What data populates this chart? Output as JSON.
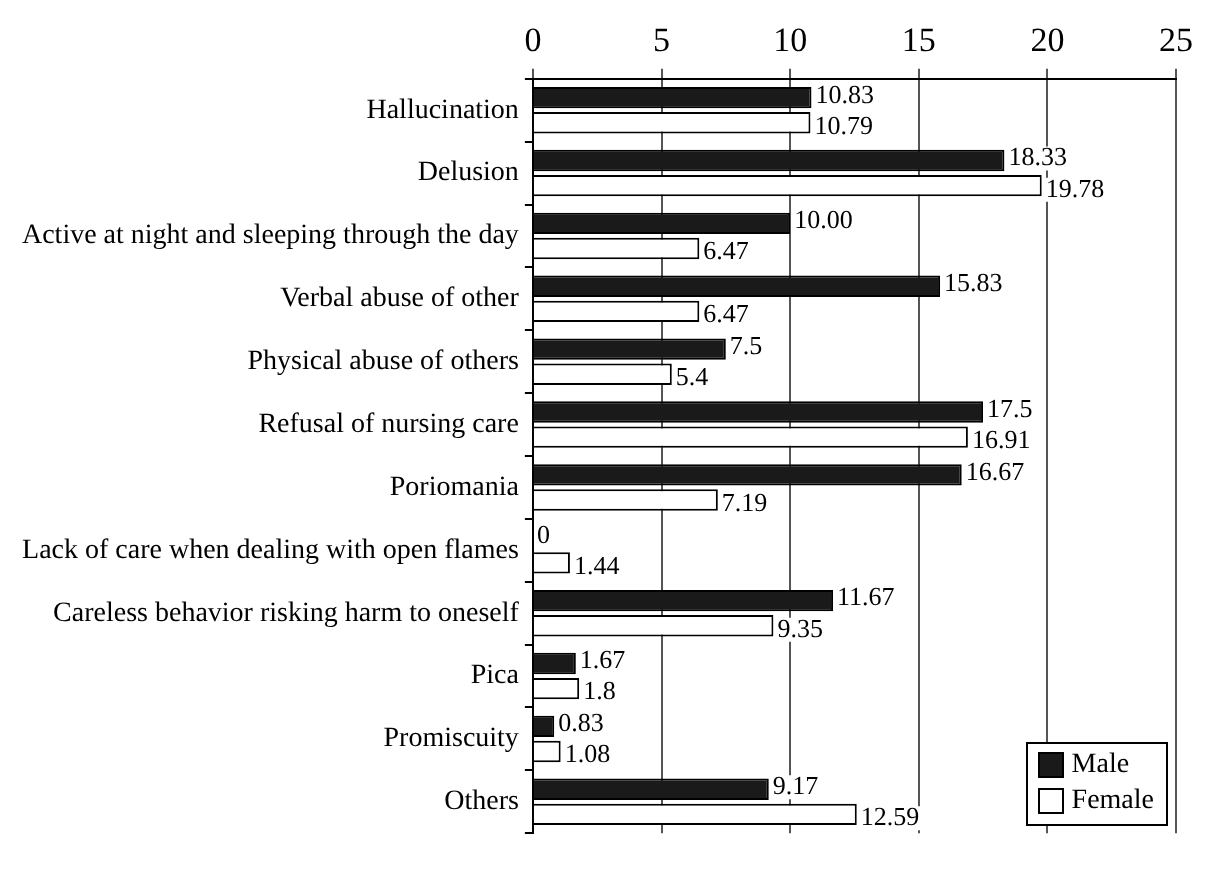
{
  "chart_data": {
    "type": "bar",
    "orientation": "horizontal",
    "categories": [
      "Hallucination",
      "Delusion",
      "Active at night and sleeping through the day",
      "Verbal abuse of other",
      "Physical abuse of others",
      "Refusal of nursing care",
      "Poriomania",
      "Lack of care when dealing with open flames",
      "Careless behavior risking harm to oneself",
      "Pica",
      "Promiscuity",
      "Others"
    ],
    "series": [
      {
        "name": "Male",
        "color": "#1a1a1a",
        "values": [
          10.83,
          18.33,
          10.0,
          15.83,
          7.5,
          17.5,
          16.67,
          0,
          11.67,
          1.67,
          0.83,
          9.17
        ],
        "value_labels": [
          "10.83",
          "18.33",
          "10.00",
          "15.83",
          "7.5",
          "17.5",
          "16.67",
          "0",
          "11.67",
          "1.67",
          "0.83",
          "9.17"
        ]
      },
      {
        "name": "Female",
        "color": "#ffffff",
        "values": [
          10.79,
          19.78,
          6.47,
          6.47,
          5.4,
          16.91,
          7.19,
          1.44,
          9.35,
          1.8,
          1.08,
          12.59
        ],
        "value_labels": [
          "10.79",
          "19.78",
          "6.47",
          "6.47",
          "5.4",
          "16.91",
          "7.19",
          "1.44",
          "9.35",
          "1.8",
          "1.08",
          "12.59"
        ]
      }
    ],
    "xlim": [
      0,
      25
    ],
    "xticks": [
      0,
      5,
      10,
      15,
      20,
      25
    ],
    "grid": "x",
    "legend": "bottom right"
  }
}
